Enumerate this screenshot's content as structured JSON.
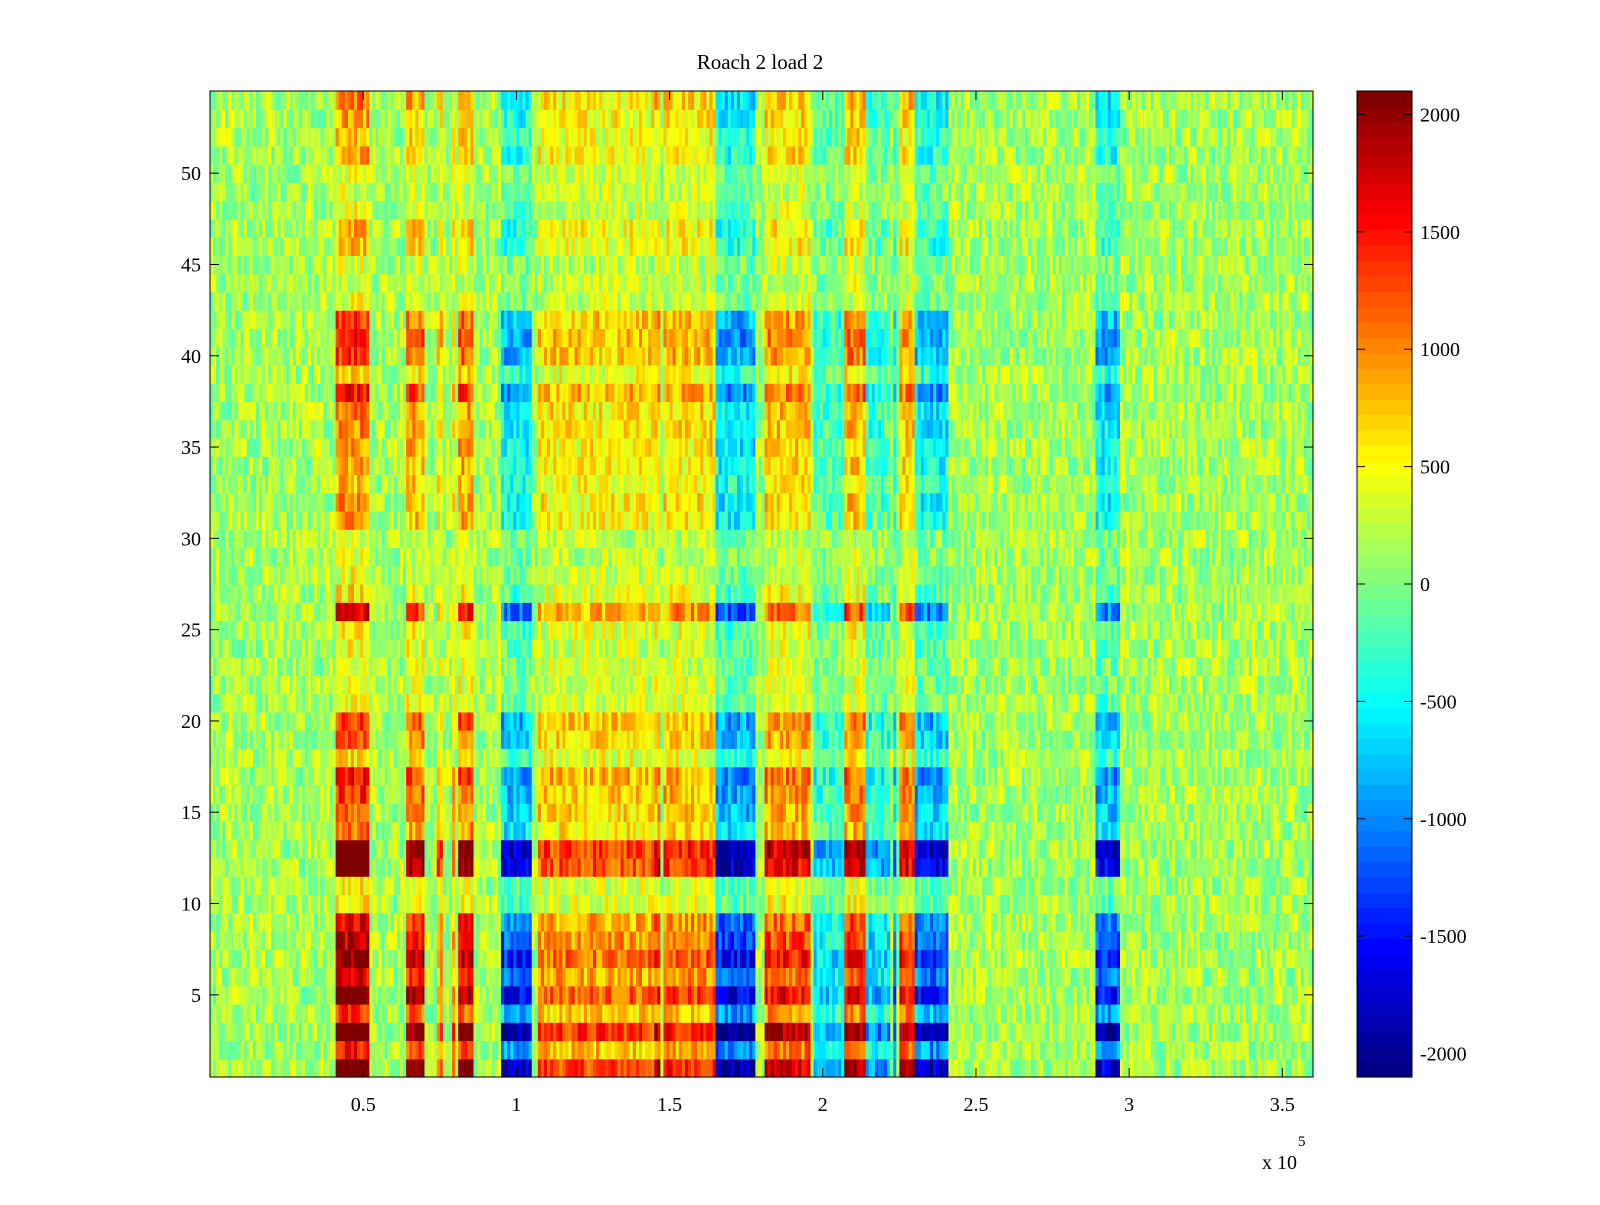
{
  "chart_data": {
    "type": "heatmap",
    "title": "Roach 2 load 2",
    "xlabel": "",
    "ylabel": "",
    "x_exponent_label": "x 10",
    "x_exponent_power": "5",
    "xlim": [
      0.0,
      3.6
    ],
    "ylim": [
      0.5,
      54.5
    ],
    "rows": 54,
    "x_ticks": [
      0.5,
      1,
      1.5,
      2,
      2.5,
      3,
      3.5
    ],
    "x_tick_labels": [
      "0.5",
      "1",
      "1.5",
      "2",
      "2.5",
      "3",
      "3.5"
    ],
    "y_ticks": [
      5,
      10,
      15,
      20,
      25,
      30,
      35,
      40,
      45,
      50
    ],
    "y_tick_labels": [
      "5",
      "10",
      "15",
      "20",
      "25",
      "30",
      "35",
      "40",
      "45",
      "50"
    ],
    "colorbar": {
      "range": [
        -2100,
        2100
      ],
      "ticks": [
        2000,
        1500,
        1000,
        500,
        0,
        -500,
        -1000,
        -1500,
        -2000
      ],
      "tick_labels": [
        "2000",
        "1500",
        "1000",
        "500",
        "0",
        "-500",
        "-1000",
        "-1500",
        "-2000"
      ],
      "colormap": "jet",
      "levels": 64
    },
    "baseline_value": 150,
    "column_bands": [
      {
        "x": [
          0.41,
          0.52
        ],
        "value": 1500
      },
      {
        "x": [
          0.64,
          0.7
        ],
        "value": 1200
      },
      {
        "x": [
          0.74,
          0.76
        ],
        "value": 700
      },
      {
        "x": [
          0.79,
          0.8
        ],
        "value": 700
      },
      {
        "x": [
          0.81,
          0.86
        ],
        "value": 1300
      },
      {
        "x": [
          0.95,
          1.05
        ],
        "value": -1200
      },
      {
        "x": [
          1.07,
          1.45
        ],
        "value": 700
      },
      {
        "x": [
          1.45,
          1.47
        ],
        "value": 1000
      },
      {
        "x": [
          1.48,
          1.65
        ],
        "value": 800
      },
      {
        "x": [
          1.65,
          1.78
        ],
        "value": -1300
      },
      {
        "x": [
          1.81,
          1.96
        ],
        "value": 1000
      },
      {
        "x": [
          1.97,
          2.07
        ],
        "value": -600
      },
      {
        "x": [
          2.07,
          2.14
        ],
        "value": 1100
      },
      {
        "x": [
          2.14,
          2.22
        ],
        "value": -700
      },
      {
        "x": [
          2.23,
          2.24
        ],
        "value": -900
      },
      {
        "x": [
          2.25,
          2.3
        ],
        "value": 1000
      },
      {
        "x": [
          2.3,
          2.41
        ],
        "value": -1200
      },
      {
        "x": [
          2.89,
          2.97
        ],
        "value": -1200
      }
    ],
    "row_weights": [
      {
        "row": 1,
        "weight": 1.6
      },
      {
        "row": 2,
        "weight": 0.9
      },
      {
        "row": 3,
        "weight": 1.7
      },
      {
        "row": 4,
        "weight": 0.8
      },
      {
        "row": 5,
        "weight": 1.4
      },
      {
        "row": 6,
        "weight": 1.0
      },
      {
        "row": 7,
        "weight": 1.3
      },
      {
        "row": 8,
        "weight": 1.1
      },
      {
        "row": 9,
        "weight": 1.0
      },
      {
        "row": 10,
        "weight": 0.3
      },
      {
        "row": 11,
        "weight": 0.25
      },
      {
        "row": 12,
        "weight": 1.5
      },
      {
        "row": 13,
        "weight": 1.6
      },
      {
        "row": 14,
        "weight": 0.6
      },
      {
        "row": 15,
        "weight": 0.7
      },
      {
        "row": 16,
        "weight": 0.8
      },
      {
        "row": 17,
        "weight": 0.9
      },
      {
        "row": 18,
        "weight": 0.35
      },
      {
        "row": 19,
        "weight": 0.7
      },
      {
        "row": 20,
        "weight": 0.8
      },
      {
        "row": 21,
        "weight": 0.25
      },
      {
        "row": 22,
        "weight": 0.2
      },
      {
        "row": 23,
        "weight": 0.2
      },
      {
        "row": 24,
        "weight": 0.25
      },
      {
        "row": 25,
        "weight": 0.3
      },
      {
        "row": 26,
        "weight": 1.0
      },
      {
        "row": 27,
        "weight": 0.3
      },
      {
        "row": 28,
        "weight": 0.2
      },
      {
        "row": 29,
        "weight": 0.15
      },
      {
        "row": 30,
        "weight": 0.15
      },
      {
        "row": 31,
        "weight": 0.5
      },
      {
        "row": 32,
        "weight": 0.55
      },
      {
        "row": 33,
        "weight": 0.45
      },
      {
        "row": 34,
        "weight": 0.5
      },
      {
        "row": 35,
        "weight": 0.55
      },
      {
        "row": 36,
        "weight": 0.6
      },
      {
        "row": 37,
        "weight": 0.6
      },
      {
        "row": 38,
        "weight": 0.9
      },
      {
        "row": 39,
        "weight": 0.4
      },
      {
        "row": 40,
        "weight": 0.8
      },
      {
        "row": 41,
        "weight": 0.85
      },
      {
        "row": 42,
        "weight": 0.75
      },
      {
        "row": 43,
        "weight": 0.2
      },
      {
        "row": 44,
        "weight": 0.15
      },
      {
        "row": 45,
        "weight": 0.15
      },
      {
        "row": 46,
        "weight": 0.4
      },
      {
        "row": 47,
        "weight": 0.45
      },
      {
        "row": 48,
        "weight": 0.2
      },
      {
        "row": 49,
        "weight": 0.15
      },
      {
        "row": 50,
        "weight": 0.2
      },
      {
        "row": 51,
        "weight": 0.45
      },
      {
        "row": 52,
        "weight": 0.4
      },
      {
        "row": 53,
        "weight": 0.5
      },
      {
        "row": 54,
        "weight": 0.6
      }
    ]
  }
}
